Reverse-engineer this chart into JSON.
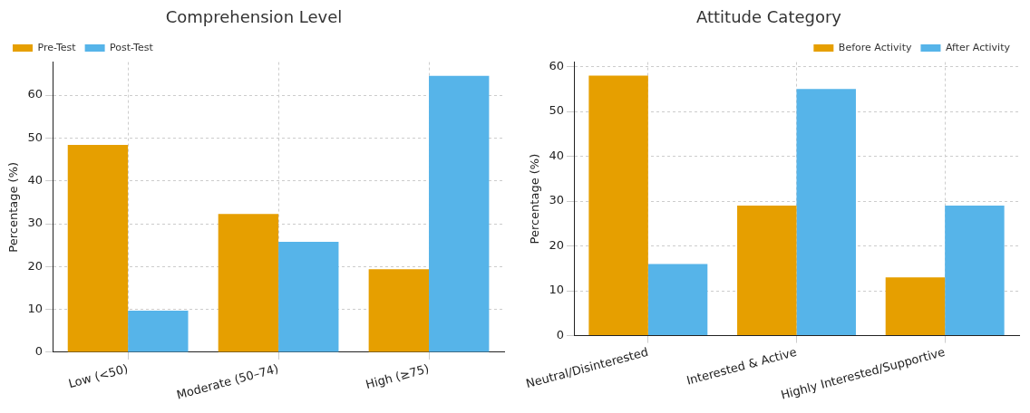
{
  "chart_data": [
    {
      "type": "bar",
      "title": "Comprehension Level",
      "ylabel": "Percentage (%)",
      "categories": [
        "Low (<50)",
        "Moderate (50–74)",
        "High (≥75)"
      ],
      "series": [
        {
          "name": "Pre-Test",
          "color": "#e69f00",
          "values": [
            48.4,
            32.3,
            19.4
          ]
        },
        {
          "name": "Post-Test",
          "color": "#56b4e9",
          "values": [
            9.7,
            25.8,
            64.5
          ]
        }
      ],
      "ylim": [
        0,
        67.7
      ],
      "yticks": [
        0,
        10,
        20,
        30,
        40,
        50,
        60
      ],
      "grid": true,
      "legend": "top left"
    },
    {
      "type": "bar",
      "title": "Attitude Category",
      "ylabel": "Percentage (%)",
      "categories": [
        "Neutral/Disinterested",
        "Interested & Active",
        "Highly Interested/Supportive"
      ],
      "series": [
        {
          "name": "Before Activity",
          "color": "#e69f00",
          "values": [
            58,
            29,
            13
          ]
        },
        {
          "name": "After Activity",
          "color": "#56b4e9",
          "values": [
            16,
            55,
            29
          ]
        }
      ],
      "ylim": [
        0,
        61
      ],
      "yticks": [
        0,
        10,
        20,
        30,
        40,
        50,
        60
      ],
      "grid": true,
      "legend": "top right"
    }
  ]
}
